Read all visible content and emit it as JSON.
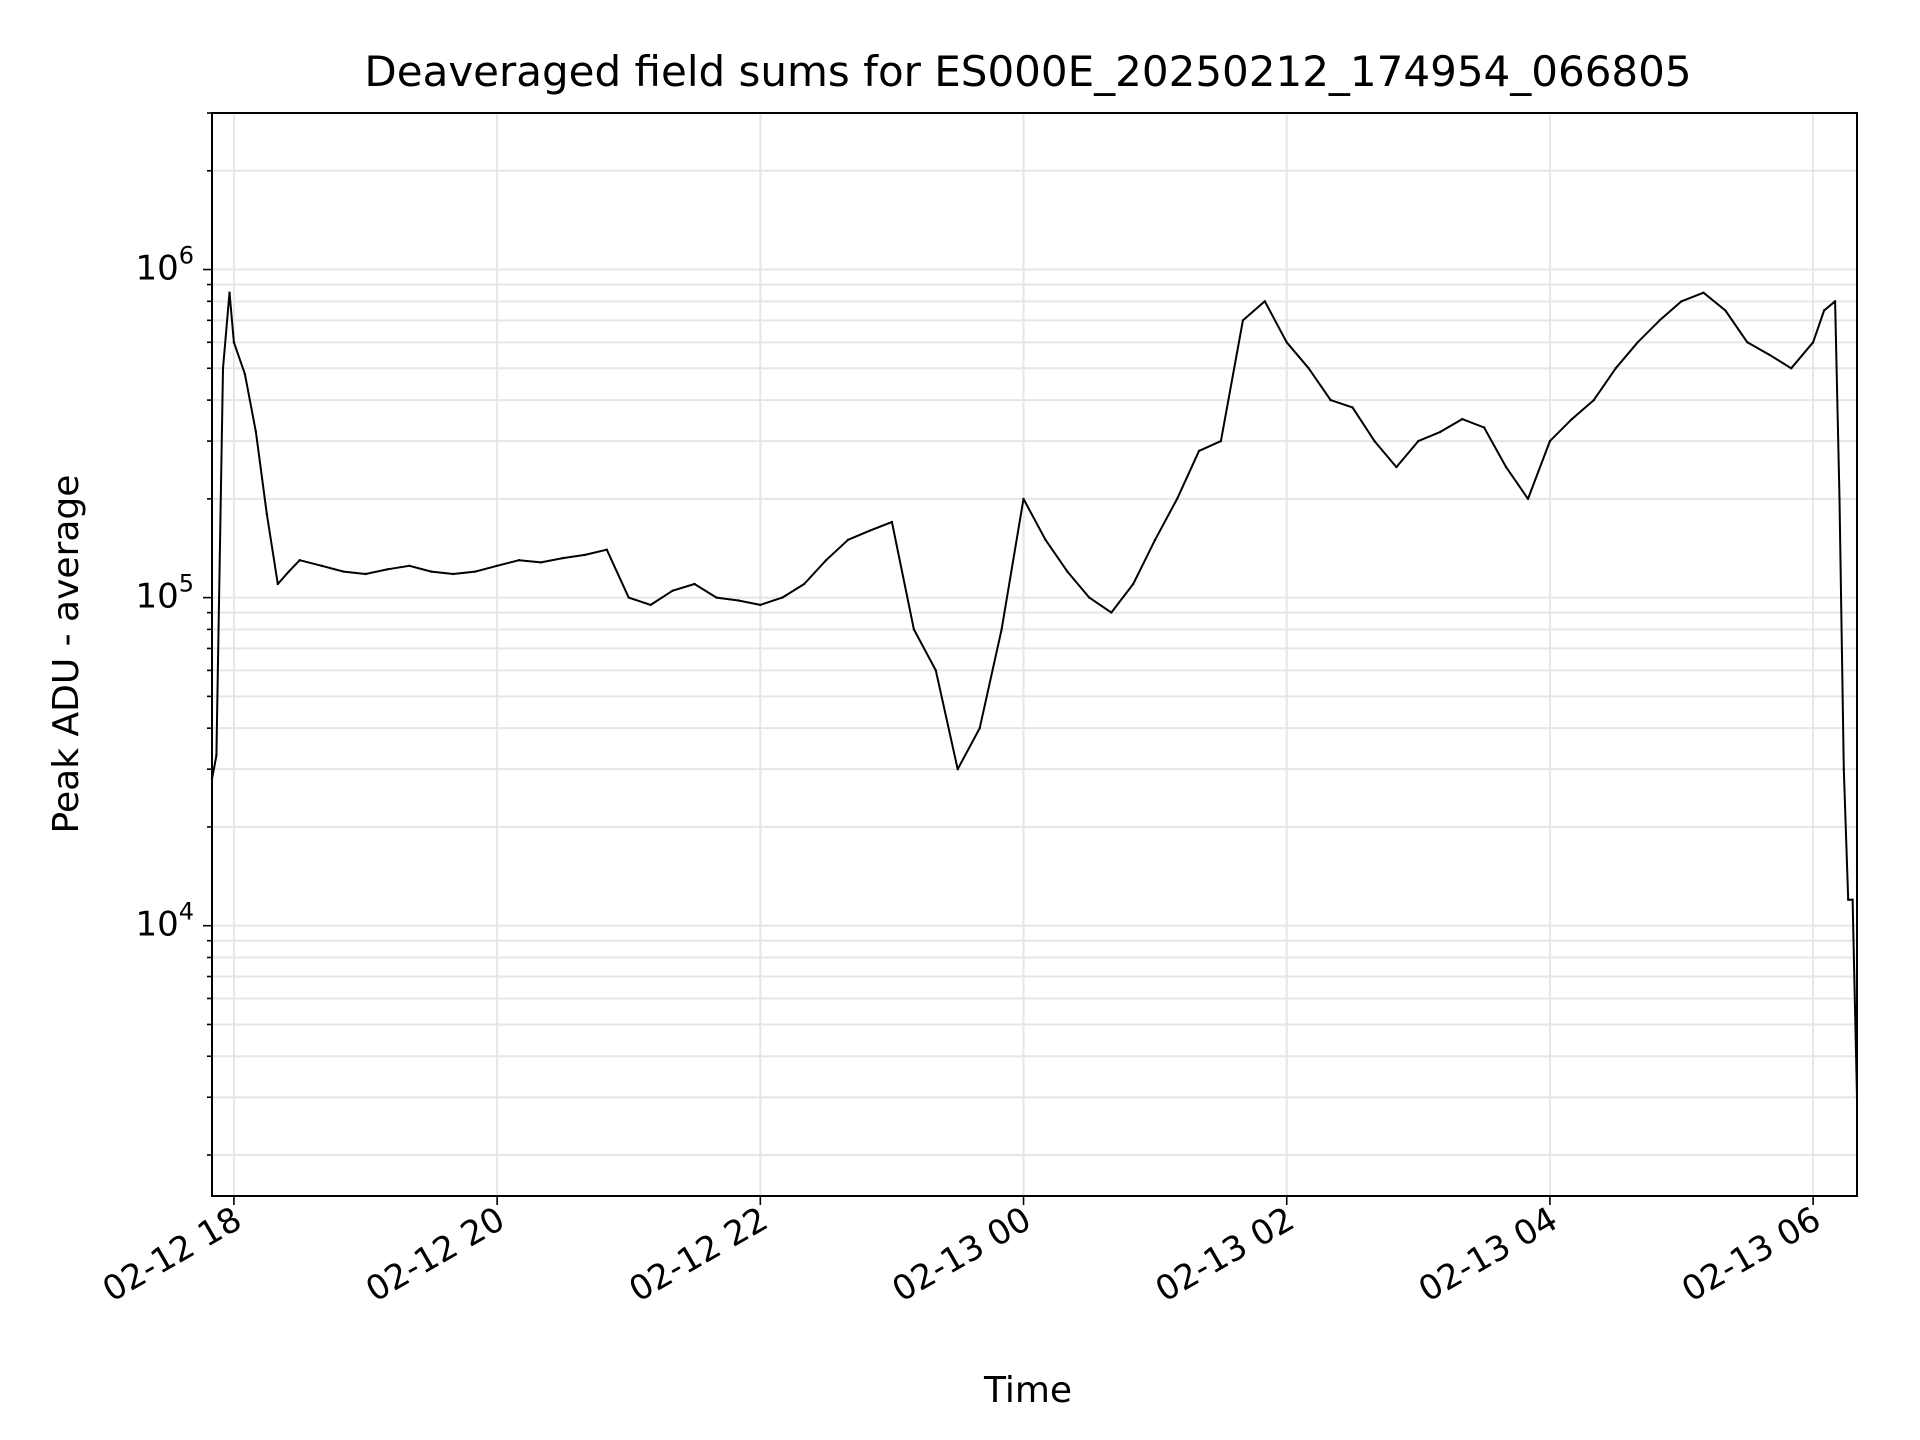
{
  "chart_data": {
    "type": "line",
    "title": "Deaveraged field sums for ES000E_20250212_174954_066805",
    "xlabel": "Time",
    "ylabel": "Peak ADU - average",
    "y_scale": "log",
    "ylim": [
      1500,
      3000000
    ],
    "xlim": [
      "2025-02-12 17:50",
      "2025-02-13 06:20"
    ],
    "grid": true,
    "color": "#000000",
    "x_ticks": [
      "02-12 18",
      "02-12 20",
      "02-12 22",
      "02-13 00",
      "02-13 02",
      "02-13 04",
      "02-13 06"
    ],
    "x_tick_times": [
      "2025-02-12 18:00",
      "2025-02-12 20:00",
      "2025-02-12 22:00",
      "2025-02-13 00:00",
      "2025-02-13 02:00",
      "2025-02-13 04:00",
      "2025-02-13 06:00"
    ],
    "y_ticks": [
      {
        "base": "10",
        "exp": "4",
        "value": 10000
      },
      {
        "base": "10",
        "exp": "5",
        "value": 100000
      },
      {
        "base": "10",
        "exp": "6",
        "value": 1000000
      }
    ],
    "series": [
      {
        "x": [
          "2025-02-12 17:50",
          "2025-02-12 17:52",
          "2025-02-12 17:55",
          "2025-02-12 17:58",
          "2025-02-12 18:00",
          "2025-02-12 18:05",
          "2025-02-12 18:10",
          "2025-02-12 18:15",
          "2025-02-12 18:20",
          "2025-02-12 18:25",
          "2025-02-12 18:30",
          "2025-02-12 18:40",
          "2025-02-12 18:50",
          "2025-02-12 19:00",
          "2025-02-12 19:10",
          "2025-02-12 19:20",
          "2025-02-12 19:30",
          "2025-02-12 19:40",
          "2025-02-12 19:50",
          "2025-02-12 20:00",
          "2025-02-12 20:10",
          "2025-02-12 20:20",
          "2025-02-12 20:30",
          "2025-02-12 20:40",
          "2025-02-12 20:50",
          "2025-02-12 21:00",
          "2025-02-12 21:10",
          "2025-02-12 21:20",
          "2025-02-12 21:30",
          "2025-02-12 21:40",
          "2025-02-12 21:50",
          "2025-02-12 22:00",
          "2025-02-12 22:10",
          "2025-02-12 22:20",
          "2025-02-12 22:30",
          "2025-02-12 22:40",
          "2025-02-12 22:50",
          "2025-02-12 23:00",
          "2025-02-12 23:10",
          "2025-02-12 23:20",
          "2025-02-12 23:30",
          "2025-02-12 23:40",
          "2025-02-12 23:50",
          "2025-02-13 00:00",
          "2025-02-13 00:10",
          "2025-02-13 00:20",
          "2025-02-13 00:30",
          "2025-02-13 00:40",
          "2025-02-13 00:50",
          "2025-02-13 01:00",
          "2025-02-13 01:10",
          "2025-02-13 01:20",
          "2025-02-13 01:30",
          "2025-02-13 01:40",
          "2025-02-13 01:50",
          "2025-02-13 02:00",
          "2025-02-13 02:10",
          "2025-02-13 02:20",
          "2025-02-13 02:30",
          "2025-02-13 02:40",
          "2025-02-13 02:50",
          "2025-02-13 03:00",
          "2025-02-13 03:10",
          "2025-02-13 03:20",
          "2025-02-13 03:30",
          "2025-02-13 03:40",
          "2025-02-13 03:50",
          "2025-02-13 04:00",
          "2025-02-13 04:10",
          "2025-02-13 04:20",
          "2025-02-13 04:30",
          "2025-02-13 04:40",
          "2025-02-13 04:50",
          "2025-02-13 05:00",
          "2025-02-13 05:10",
          "2025-02-13 05:20",
          "2025-02-13 05:30",
          "2025-02-13 05:40",
          "2025-02-13 05:50",
          "2025-02-13 06:00",
          "2025-02-13 06:05",
          "2025-02-13 06:10",
          "2025-02-13 06:12",
          "2025-02-13 06:14",
          "2025-02-13 06:16",
          "2025-02-13 06:18",
          "2025-02-13 06:20"
        ],
        "y": [
          28000,
          33000,
          500000,
          850000,
          600000,
          480000,
          320000,
          180000,
          110000,
          120000,
          130000,
          125000,
          120000,
          118000,
          122000,
          125000,
          120000,
          118000,
          120000,
          125000,
          130000,
          128000,
          132000,
          135000,
          140000,
          100000,
          95000,
          105000,
          110000,
          100000,
          98000,
          95000,
          100000,
          110000,
          130000,
          150000,
          160000,
          170000,
          80000,
          60000,
          30000,
          40000,
          80000,
          200000,
          150000,
          120000,
          100000,
          90000,
          110000,
          150000,
          200000,
          280000,
          300000,
          700000,
          800000,
          600000,
          500000,
          400000,
          380000,
          300000,
          250000,
          300000,
          320000,
          350000,
          330000,
          250000,
          200000,
          300000,
          350000,
          400000,
          500000,
          600000,
          700000,
          800000,
          850000,
          750000,
          600000,
          550000,
          500000,
          600000,
          750000,
          800000,
          200000,
          30000,
          12000,
          12000,
          3000
        ]
      }
    ]
  }
}
